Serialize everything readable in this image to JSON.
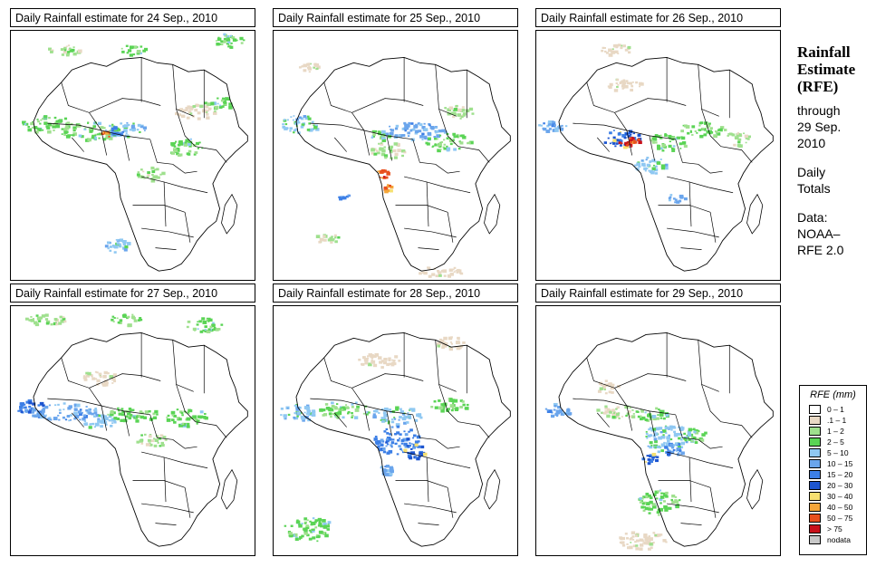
{
  "panels": [
    {
      "title": "Daily Rainfall estimate for  24 Sep., 2010",
      "pattern": "p24"
    },
    {
      "title": "Daily Rainfall estimate for  25 Sep., 2010",
      "pattern": "p25"
    },
    {
      "title": "Daily Rainfall estimate for  26 Sep., 2010",
      "pattern": "p26"
    },
    {
      "title": "Daily Rainfall estimate for  27 Sep., 2010",
      "pattern": "p27"
    },
    {
      "title": "Daily Rainfall estimate for  28 Sep., 2010",
      "pattern": "p28"
    },
    {
      "title": "Daily Rainfall estimate for  29 Sep., 2010",
      "pattern": "p29"
    }
  ],
  "side": {
    "title_line1": "Rainfall",
    "title_line2": "Estimate",
    "title_line3": "(RFE)",
    "through": "through",
    "date_line1": "29 Sep.",
    "date_line2": "2010",
    "totals_line1": "Daily",
    "totals_line2": "Totals",
    "data_label": "Data:",
    "data_line1": "NOAA–",
    "data_line2": "RFE 2.0"
  },
  "legend": {
    "title": "RFE (mm)",
    "items": [
      {
        "label": "0 – 1",
        "color": "#ffffff"
      },
      {
        "label": ".1 – 1",
        "color": "#e8d8c4"
      },
      {
        "label": "1 – 2",
        "color": "#9fe08e"
      },
      {
        "label": "2 – 5",
        "color": "#5ad455"
      },
      {
        "label": "5 – 10",
        "color": "#8fc8f2"
      },
      {
        "label": "10 – 15",
        "color": "#6aa5ec"
      },
      {
        "label": "15 – 20",
        "color": "#3c7fe6"
      },
      {
        "label": "20 – 30",
        "color": "#1d55d0"
      },
      {
        "label": "30 – 40",
        "color": "#f6e070"
      },
      {
        "label": "40 – 50",
        "color": "#f4a63a"
      },
      {
        "label": "50 – 75",
        "color": "#e8501e"
      },
      {
        "label": "> 75",
        "color": "#c8101a"
      },
      {
        "label": "nodata",
        "color": "#c8c8c8"
      }
    ]
  }
}
